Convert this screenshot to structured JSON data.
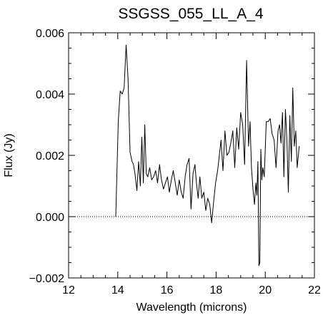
{
  "chart_data": {
    "type": "line",
    "title": "SSGSS_055_LL_A_4",
    "xlabel": "Wavelength (microns)",
    "ylabel": "Flux (Jy)",
    "xlim": [
      12,
      22
    ],
    "ylim": [
      -0.002,
      0.006
    ],
    "x_ticks": [
      12,
      14,
      16,
      18,
      20,
      22
    ],
    "x_tick_labels": [
      "12",
      "14",
      "16",
      "18",
      "20",
      "22"
    ],
    "y_ticks": [
      -0.002,
      0.0,
      0.002,
      0.004,
      0.006
    ],
    "y_tick_labels": [
      "−0.002",
      "0.000",
      "0.002",
      "0.004",
      "0.006"
    ],
    "zero_line": true,
    "grid": false,
    "series": [
      {
        "x": [
          13.92,
          14.02,
          14.1,
          14.18,
          14.26,
          14.34,
          14.42,
          14.5,
          14.58,
          14.64,
          14.7,
          14.78,
          14.85,
          14.92,
          14.98,
          15.04,
          15.1,
          15.16,
          15.22,
          15.3,
          15.38,
          15.46,
          15.54,
          15.62,
          15.7,
          15.78,
          15.86,
          15.94,
          16.02,
          16.1,
          16.18,
          16.26,
          16.34,
          16.42,
          16.5,
          16.58,
          16.66,
          16.74,
          16.82,
          16.9,
          16.98,
          17.06,
          17.14,
          17.2,
          17.27,
          17.34,
          17.42,
          17.5,
          17.58,
          17.66,
          17.74,
          17.82,
          17.9,
          17.98,
          18.06,
          18.12,
          18.2,
          18.28,
          18.36,
          18.44,
          18.52,
          18.6,
          18.68,
          18.76,
          18.84,
          18.92,
          19.0,
          19.08,
          19.16,
          19.24,
          19.32,
          19.38,
          19.44,
          19.5,
          19.56,
          19.62,
          19.66,
          19.7,
          19.74,
          19.78,
          19.82,
          19.86,
          19.9,
          19.96,
          20.04,
          20.12,
          20.2,
          20.28,
          20.36,
          20.44,
          20.52,
          20.58,
          20.64,
          20.7,
          20.76,
          20.82,
          20.88,
          20.94,
          21.0,
          21.06,
          21.12,
          21.18,
          21.24,
          21.3,
          21.38
        ],
        "y": [
          0.0,
          0.0031,
          0.0041,
          0.004,
          0.0042,
          0.0056,
          0.0045,
          0.0021,
          0.0018,
          0.0017,
          0.0014,
          0.00085,
          0.0018,
          0.001,
          0.0026,
          0.0011,
          0.003,
          0.0014,
          0.0013,
          0.0016,
          0.0012,
          0.0013,
          0.0015,
          0.0011,
          0.0017,
          0.0012,
          0.0009,
          0.0011,
          0.0013,
          0.0008,
          0.0012,
          0.0015,
          0.0011,
          0.0007,
          0.0012,
          0.0008,
          0.0006,
          0.0013,
          0.0017,
          0.0019,
          0.00025,
          0.0014,
          0.0017,
          0.0011,
          0.0006,
          0.0013,
          0.0006,
          0.0008,
          0.0002,
          0.0006,
          0.0004,
          -0.0002,
          0.0005,
          0.0011,
          0.0015,
          0.0019,
          0.0025,
          0.0015,
          0.0028,
          0.002,
          0.0021,
          0.0024,
          0.0028,
          0.0016,
          0.0029,
          0.0022,
          0.0034,
          0.003,
          0.0017,
          0.0051,
          0.0023,
          0.0031,
          0.0016,
          0.0009,
          0.0004,
          0.0011,
          0.0007,
          0.0018,
          -0.0016,
          -0.0015,
          0.0022,
          0.0012,
          0.0016,
          0.0013,
          0.0031,
          0.0031,
          0.0032,
          0.0027,
          0.0025,
          0.0016,
          0.0028,
          0.003,
          0.0024,
          0.0034,
          0.0013,
          0.0035,
          0.0025,
          0.0008,
          0.0033,
          0.0018,
          0.0042,
          0.0023,
          0.0028,
          0.0016,
          0.0023
        ]
      }
    ]
  }
}
